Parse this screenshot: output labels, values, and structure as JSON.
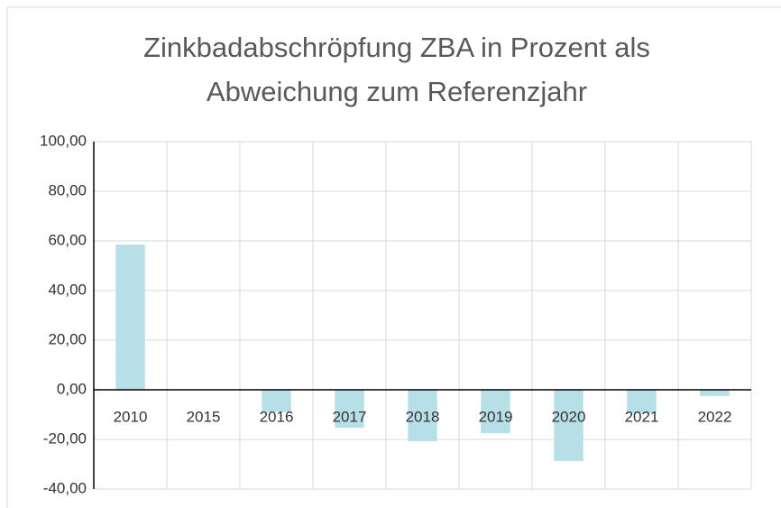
{
  "chart_data": {
    "type": "bar",
    "title": "Zinkbadabschröpfung ZBA in Prozent als Abweichung zum Referenzjahr",
    "categories": [
      "2010",
      "2015",
      "2016",
      "2017",
      "2018",
      "2019",
      "2020",
      "2021",
      "2022"
    ],
    "values": [
      58.5,
      0,
      -9,
      -15.3,
      -20.7,
      -17.5,
      -28.7,
      -9.5,
      -2.5
    ],
    "color": "#b7dfe8",
    "ylim": [
      -40,
      100
    ],
    "yticks": [
      {
        "value": -40,
        "label": "-40,00"
      },
      {
        "value": -20,
        "label": "-20,00"
      },
      {
        "value": 0,
        "label": "0,00"
      },
      {
        "value": 20,
        "label": "20,00"
      },
      {
        "value": 40,
        "label": "40,00"
      },
      {
        "value": 60,
        "label": "60,00"
      },
      {
        "value": 80,
        "label": "80,00"
      },
      {
        "value": 100,
        "label": "100,00"
      }
    ],
    "grid": true
  }
}
